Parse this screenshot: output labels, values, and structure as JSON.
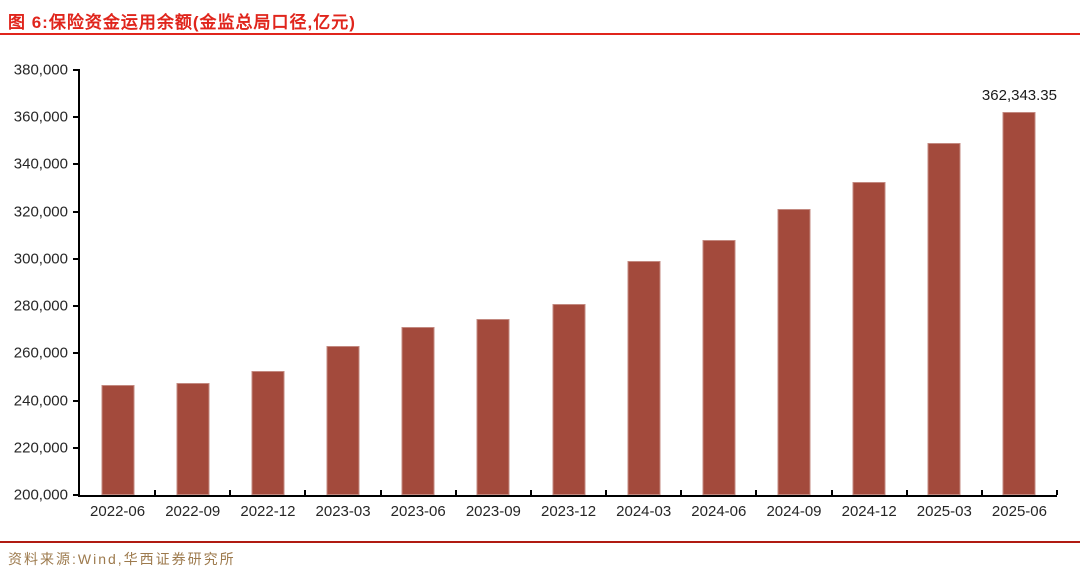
{
  "header": {
    "title": "图 6:保险资金运用余额(金监总局口径,亿元)"
  },
  "footer": {
    "source": "资料来源:Wind,华西证券研究所"
  },
  "colors": {
    "title_red": "#e0251c",
    "bottom_rule_red": "#b01b12",
    "bar": "#a34a3c",
    "axis": "#000000",
    "tick_label": "#262626",
    "source_text": "#9d7a4d"
  },
  "chart_data": {
    "type": "bar",
    "title": "保险资金运用余额(金监总局口径,亿元)",
    "categories": [
      "2022-06",
      "2022-09",
      "2022-12",
      "2023-03",
      "2023-06",
      "2023-09",
      "2023-12",
      "2024-03",
      "2024-06",
      "2024-09",
      "2024-12",
      "2025-03",
      "2025-06"
    ],
    "values": [
      246500,
      247500,
      252500,
      263000,
      271000,
      274500,
      281000,
      299000,
      308000,
      321000,
      332500,
      349000,
      362343.35
    ],
    "point_labels": [
      "",
      "",
      "",
      "",
      "",
      "",
      "",
      "",
      "",
      "",
      "",
      "",
      "362,343.35"
    ],
    "xlabel": "",
    "ylabel": "",
    "ylim": [
      200000,
      380000
    ],
    "y_tick_step": 20000,
    "y_tick_labels": [
      "200,000",
      "220,000",
      "240,000",
      "260,000",
      "280,000",
      "300,000",
      "320,000",
      "340,000",
      "360,000",
      "380,000"
    ],
    "grid": false,
    "legend": false
  }
}
